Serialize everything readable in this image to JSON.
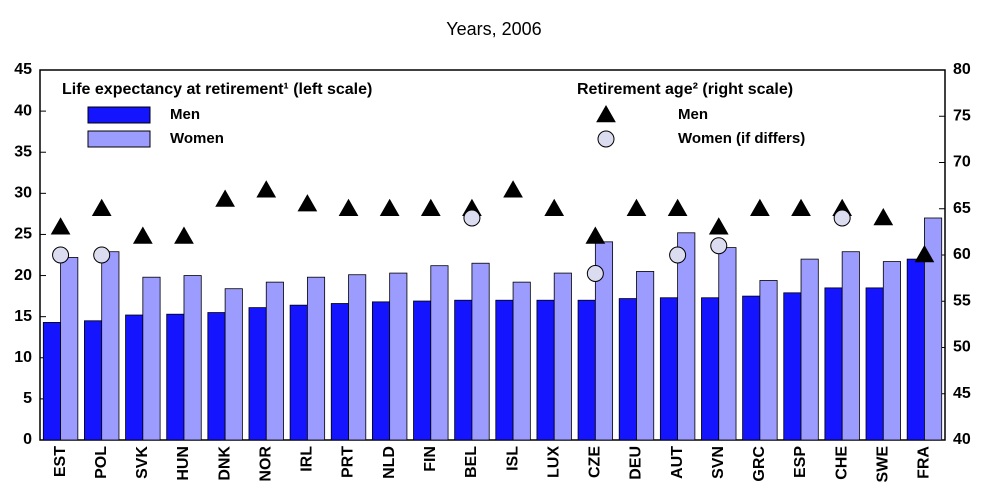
{
  "chart_data": {
    "type": "bar",
    "title": "Years, 2006",
    "legend_groups": [
      "Life expectancy at retirement¹ (left scale)",
      "Retirement age² (right scale)"
    ],
    "categories": [
      "EST",
      "POL",
      "SVK",
      "HUN",
      "DNK",
      "NOR",
      "IRL",
      "PRT",
      "NLD",
      "FIN",
      "BEL",
      "ISL",
      "LUX",
      "CZE",
      "DEU",
      "AUT",
      "SVN",
      "GRC",
      "ESP",
      "CHE",
      "SWE",
      "FRA"
    ],
    "series": [
      {
        "name": "Men",
        "color": "#1414ff",
        "values": [
          14.3,
          14.5,
          15.2,
          15.3,
          15.5,
          16.1,
          16.4,
          16.6,
          16.8,
          16.9,
          17.0,
          17.0,
          17.0,
          17.0,
          17.2,
          17.3,
          17.3,
          17.5,
          17.9,
          18.5,
          18.5,
          22.0
        ]
      },
      {
        "name": "Women",
        "color": "#9c9cff",
        "values": [
          22.2,
          22.9,
          19.8,
          20.0,
          18.4,
          19.2,
          19.8,
          20.1,
          20.3,
          21.2,
          21.5,
          19.2,
          20.3,
          24.1,
          20.5,
          25.2,
          23.4,
          19.4,
          22.0,
          22.9,
          21.7,
          27.0
        ]
      },
      {
        "name": "Men",
        "color": "#000000",
        "axis": "y2",
        "marker": "triangle",
        "values": [
          63,
          65,
          62,
          62,
          66,
          67,
          65.5,
          65,
          65,
          65,
          65,
          67,
          65,
          62,
          65,
          65,
          63,
          65,
          65,
          65,
          64,
          60
        ]
      },
      {
        "name": "Women (if differs)",
        "color": "#dcdcf0",
        "axis": "y2",
        "marker": "circle",
        "values": [
          60,
          60,
          null,
          null,
          null,
          null,
          null,
          null,
          null,
          null,
          64,
          null,
          null,
          58,
          null,
          60,
          61,
          null,
          null,
          64,
          null,
          null
        ]
      }
    ],
    "ylim": [
      0,
      45
    ],
    "yticks": [
      0,
      5,
      10,
      15,
      20,
      25,
      30,
      35,
      40,
      45
    ],
    "y2lim": [
      40,
      80
    ],
    "y2ticks": [
      40,
      45,
      50,
      55,
      60,
      65,
      70,
      75,
      80
    ]
  }
}
